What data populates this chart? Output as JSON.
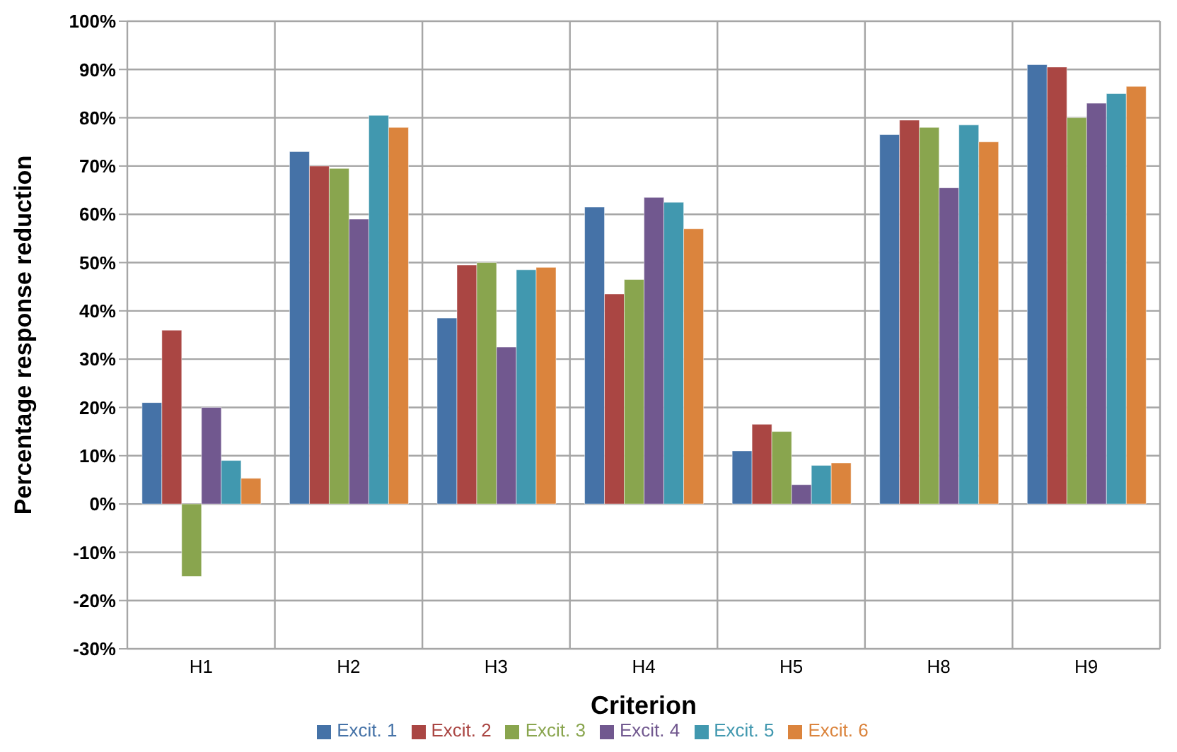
{
  "chart_data": {
    "type": "bar",
    "xlabel": "Criterion",
    "ylabel": "Percentage response reduction",
    "categories": [
      "H1",
      "H2",
      "H3",
      "H4",
      "H5",
      "H8",
      "H9"
    ],
    "series": [
      {
        "name": "Excit. 1",
        "color": "#4572a7",
        "values": [
          21,
          73,
          38.5,
          61.5,
          11,
          76.5,
          91
        ]
      },
      {
        "name": "Excit. 2",
        "color": "#aa4643",
        "values": [
          36,
          70,
          49.5,
          43.5,
          16.5,
          79.5,
          90.5
        ]
      },
      {
        "name": "Excit. 3",
        "color": "#89a54e",
        "values": [
          -15,
          69.5,
          50,
          46.5,
          15,
          78,
          80
        ]
      },
      {
        "name": "Excit. 4",
        "color": "#71588f",
        "values": [
          20,
          59,
          32.5,
          63.5,
          4,
          65.5,
          83
        ]
      },
      {
        "name": "Excit. 5",
        "color": "#4198af",
        "values": [
          9,
          80.5,
          48.5,
          62.5,
          8,
          78.5,
          85
        ]
      },
      {
        "name": "Excit. 6",
        "color": "#db843d",
        "values": [
          5.3,
          78,
          49,
          57,
          8.5,
          75,
          86.5
        ]
      }
    ],
    "ylim": [
      -30,
      100
    ],
    "yticks": [
      {
        "value": -30,
        "label": "-30%"
      },
      {
        "value": -20,
        "label": "-20%"
      },
      {
        "value": -10,
        "label": "-10%"
      },
      {
        "value": 0,
        "label": "0%"
      },
      {
        "value": 10,
        "label": "10%"
      },
      {
        "value": 20,
        "label": "20%"
      },
      {
        "value": 30,
        "label": "30%"
      },
      {
        "value": 40,
        "label": "40%"
      },
      {
        "value": 50,
        "label": "50%"
      },
      {
        "value": 60,
        "label": "60%"
      },
      {
        "value": 70,
        "label": "70%"
      },
      {
        "value": 80,
        "label": "80%"
      },
      {
        "value": 90,
        "label": "90%"
      },
      {
        "value": 100,
        "label": "100%"
      }
    ],
    "grid": true,
    "legend": "bottom"
  }
}
